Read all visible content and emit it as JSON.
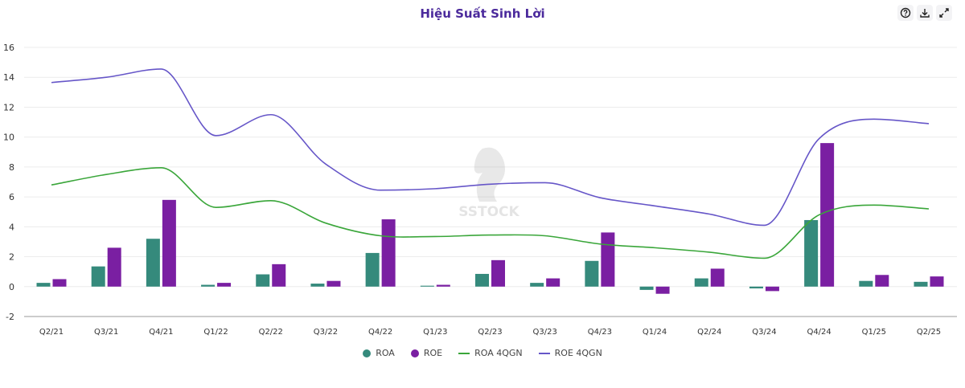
{
  "title": "Hiệu Suất Sinh Lời",
  "toolbar": {
    "icons": [
      "help-icon",
      "download-icon",
      "expand-icon"
    ]
  },
  "watermark": "SSTOCK",
  "chart_data": {
    "type": "bar",
    "title": "Hiệu Suất Sinh Lời",
    "categories": [
      "Q2/21",
      "Q3/21",
      "Q4/21",
      "Q1/22",
      "Q2/22",
      "Q3/22",
      "Q4/22",
      "Q1/23",
      "Q2/23",
      "Q3/23",
      "Q4/23",
      "Q1/24",
      "Q2/24",
      "Q3/24",
      "Q4/24",
      "Q1/25",
      "Q2/25"
    ],
    "ylim": [
      -2,
      16
    ],
    "yticks": [
      -2,
      0,
      2,
      4,
      6,
      8,
      10,
      12,
      14,
      16
    ],
    "grid": true,
    "legend_position": "bottom",
    "series": [
      {
        "name": "ROA",
        "kind": "bar",
        "color": "#358a7c",
        "values": [
          0.25,
          1.35,
          3.2,
          0.12,
          0.82,
          0.2,
          2.25,
          0.06,
          0.85,
          0.25,
          1.72,
          -0.22,
          0.55,
          -0.12,
          4.45,
          0.38,
          0.32
        ]
      },
      {
        "name": "ROE",
        "kind": "bar",
        "color": "#7a1fa2",
        "values": [
          0.5,
          2.6,
          5.8,
          0.25,
          1.5,
          0.38,
          4.5,
          0.12,
          1.77,
          0.55,
          3.62,
          -0.48,
          1.2,
          -0.3,
          9.6,
          0.78,
          0.68
        ]
      },
      {
        "name": "ROA 4QGN",
        "kind": "line",
        "color": "#3aa63a",
        "values": [
          6.8,
          7.5,
          7.95,
          5.3,
          5.75,
          4.25,
          3.4,
          3.35,
          3.45,
          3.4,
          2.85,
          2.6,
          2.3,
          1.9,
          4.8,
          5.45,
          5.2
        ]
      },
      {
        "name": "ROE 4QGN",
        "kind": "line",
        "color": "#6656c8",
        "values": [
          13.65,
          14.0,
          14.55,
          10.1,
          11.5,
          8.2,
          6.45,
          6.55,
          6.85,
          6.95,
          5.95,
          5.4,
          4.85,
          4.1,
          9.9,
          11.2,
          10.9
        ]
      }
    ]
  }
}
